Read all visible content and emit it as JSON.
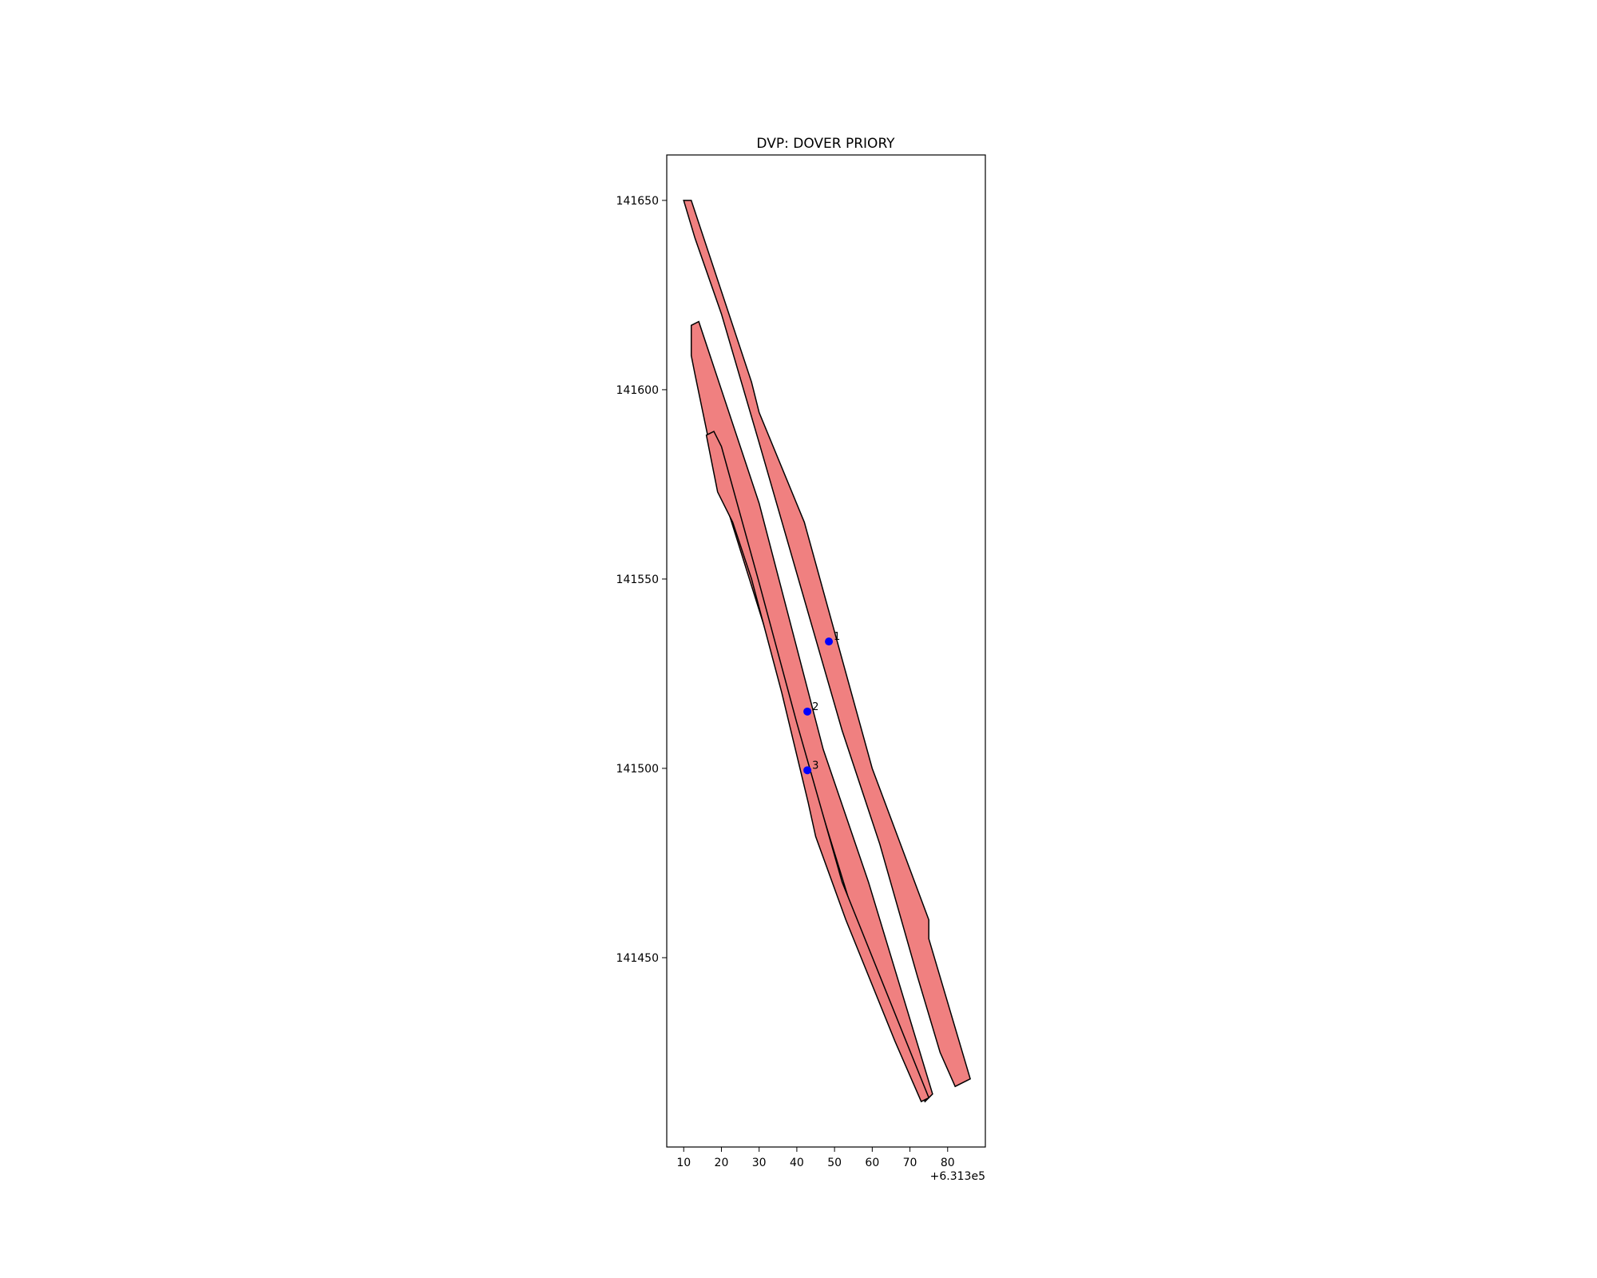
{
  "chart_data": {
    "type": "scatter",
    "title": "DVP: DOVER PRIORY",
    "xlabel": "",
    "ylabel": "",
    "x_offset_label": "+6.313e5",
    "xlim": [
      5.5,
      90
    ],
    "ylim": [
      141400,
      141662
    ],
    "x_ticks": [
      10,
      20,
      30,
      40,
      50,
      60,
      70,
      80
    ],
    "y_ticks": [
      141450,
      141500,
      141550,
      141600,
      141650
    ],
    "grid": false,
    "colors": {
      "polygon_fill": "#f08080",
      "polygon_edge": "#000000",
      "point": "#0000ff"
    },
    "polygons": [
      {
        "points": [
          [
            10,
            141650
          ],
          [
            12,
            141650
          ],
          [
            28,
            141602
          ],
          [
            30,
            141594
          ],
          [
            42,
            141565
          ],
          [
            60,
            141500
          ],
          [
            75,
            141460
          ],
          [
            75,
            141455
          ],
          [
            86,
            141418
          ],
          [
            82,
            141416
          ],
          [
            78,
            141425
          ],
          [
            72,
            141445
          ],
          [
            62,
            141480
          ],
          [
            52,
            141510
          ],
          [
            30,
            141586
          ],
          [
            20,
            141620
          ],
          [
            13,
            141640
          ]
        ]
      },
      {
        "points": [
          [
            12,
            141617
          ],
          [
            14,
            141618
          ],
          [
            30,
            141570
          ],
          [
            47,
            141505
          ],
          [
            59,
            141470
          ],
          [
            76,
            141414
          ],
          [
            74,
            141412
          ],
          [
            57,
            141455
          ],
          [
            40,
            141510
          ],
          [
            18,
            141580
          ],
          [
            13,
            141604
          ],
          [
            12,
            141609
          ]
        ]
      },
      {
        "points": [
          [
            16,
            141588
          ],
          [
            18,
            141589
          ],
          [
            20,
            141585
          ],
          [
            30,
            141549
          ],
          [
            40,
            141512
          ],
          [
            52,
            141470
          ],
          [
            75,
            141413
          ],
          [
            73,
            141412
          ],
          [
            66,
            141428
          ],
          [
            53,
            141460
          ],
          [
            45,
            141482
          ],
          [
            43,
            141491
          ],
          [
            36,
            141520
          ],
          [
            28,
            141550
          ],
          [
            23,
            141565
          ],
          [
            19,
            141573
          ],
          [
            18,
            141578
          ]
        ]
      }
    ],
    "points": [
      {
        "label": "1",
        "x": 48.5,
        "y": 141533.5
      },
      {
        "label": "2",
        "x": 42.8,
        "y": 141515
      },
      {
        "label": "3",
        "x": 42.8,
        "y": 141499.5
      }
    ]
  }
}
